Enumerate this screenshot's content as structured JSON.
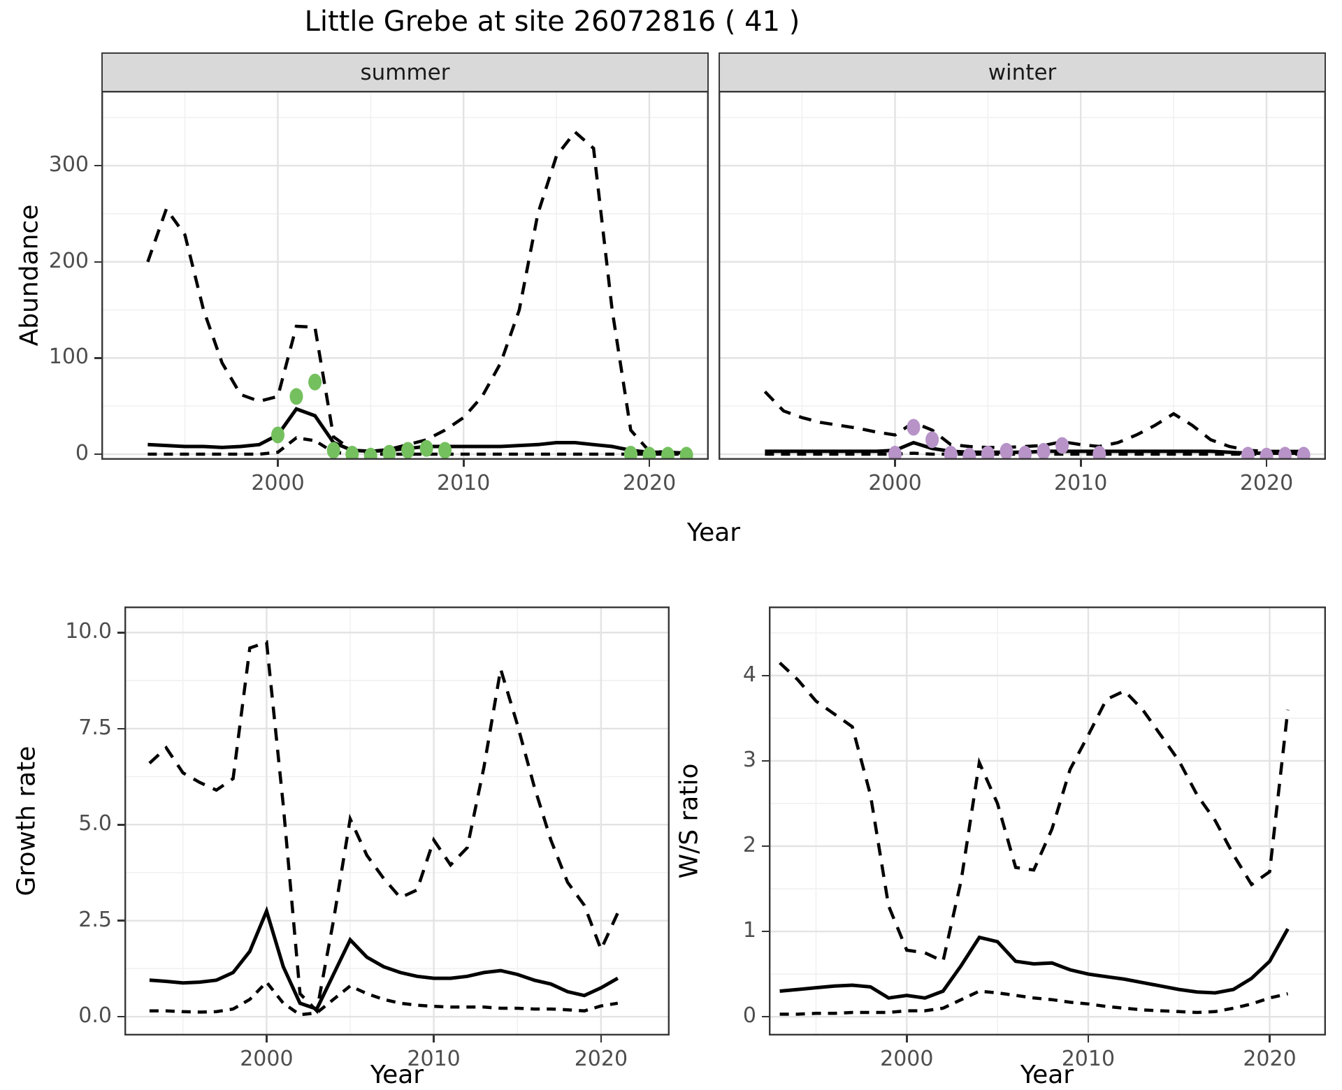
{
  "title": "Little Grebe at site 26072816 ( 41 )",
  "facets": {
    "summer": "summer",
    "winter": "winter"
  },
  "axis_labels": {
    "abundance": "Abundance",
    "year": "Year",
    "growth": "Growth rate",
    "ws": "W/S ratio"
  },
  "colors": {
    "summer_points": "#74C05E",
    "winter_points": "#B793C8",
    "line": "#000000",
    "strip_bg": "#D9D9D9",
    "grid_major": "#E3E3E3",
    "grid_minor": "#F1F1F1",
    "panel_border": "#383838",
    "axis_text": "#4D4D4D"
  },
  "chart_data": [
    {
      "id": "abundance-summer",
      "type": "line",
      "facet": "summer",
      "xlabel": "Year",
      "ylabel": "Abundance",
      "x": [
        1993,
        1994,
        1995,
        1996,
        1997,
        1998,
        1999,
        2000,
        2001,
        2002,
        2003,
        2004,
        2005,
        2006,
        2007,
        2008,
        2009,
        2010,
        2011,
        2012,
        2013,
        2014,
        2015,
        2016,
        2017,
        2018,
        2019,
        2020,
        2021,
        2022
      ],
      "series": [
        {
          "name": "upper_ci",
          "style": "dashed",
          "values": [
            200,
            255,
            228,
            150,
            95,
            62,
            55,
            60,
            133,
            132,
            18,
            4,
            3,
            5,
            10,
            15,
            25,
            38,
            60,
            95,
            150,
            250,
            310,
            335,
            318,
            150,
            25,
            3,
            2,
            2
          ]
        },
        {
          "name": "mean",
          "style": "solid",
          "values": [
            10,
            9,
            8,
            8,
            7,
            8,
            10,
            20,
            47,
            40,
            12,
            4,
            3,
            4,
            6,
            8,
            8,
            8,
            8,
            8,
            9,
            10,
            12,
            12,
            10,
            8,
            4,
            2,
            2,
            1
          ]
        },
        {
          "name": "lower_ci",
          "style": "dashed2",
          "values": [
            0,
            0,
            0,
            0,
            0,
            0,
            0,
            2,
            17,
            14,
            2,
            0,
            0,
            0,
            0,
            0,
            0,
            0,
            0,
            0,
            0,
            0,
            0,
            0,
            0,
            0,
            0,
            0,
            0,
            0
          ]
        }
      ],
      "points": {
        "name": "observed-counts",
        "color": "#74C05E",
        "x": [
          2000,
          2001,
          2002,
          2003,
          2004,
          2005,
          2006,
          2007,
          2008,
          2009,
          2019,
          2020,
          2021,
          2022
        ],
        "y": [
          20,
          60,
          75,
          4,
          0,
          -2,
          1,
          4,
          6,
          4,
          0,
          -1,
          -1,
          -1
        ]
      },
      "xlim": [
        1990.5,
        2023.2
      ],
      "ylim": [
        -5.8,
        377.8
      ],
      "xticks": [
        2000,
        2010,
        2020
      ],
      "xtick_labels": [
        "2000",
        "2010",
        "2020"
      ],
      "yticks": [
        0,
        100,
        200,
        300
      ],
      "ytick_labels": [
        "0",
        "100",
        "200",
        "300"
      ],
      "xticks_minor": [
        1995,
        2005,
        2015
      ],
      "yticks_minor": [
        50,
        150,
        250,
        350
      ],
      "grid": true,
      "legend": "none"
    },
    {
      "id": "abundance-winter",
      "type": "line",
      "facet": "winter",
      "xlabel": "Year",
      "ylabel": "Abundance",
      "x": [
        1993,
        1994,
        1995,
        1996,
        1997,
        1998,
        1999,
        2000,
        2001,
        2002,
        2003,
        2004,
        2005,
        2006,
        2007,
        2008,
        2009,
        2010,
        2011,
        2012,
        2013,
        2014,
        2015,
        2016,
        2017,
        2018,
        2019,
        2020,
        2021,
        2022
      ],
      "series": [
        {
          "name": "upper_ci",
          "style": "dashed",
          "values": [
            65,
            45,
            38,
            33,
            30,
            27,
            23,
            20,
            33,
            25,
            10,
            8,
            7,
            7,
            8,
            9,
            13,
            10,
            8,
            12,
            20,
            30,
            42,
            30,
            15,
            8,
            4,
            3,
            3,
            3
          ]
        },
        {
          "name": "mean",
          "style": "solid",
          "values": [
            3,
            3,
            3,
            3,
            3,
            3,
            3,
            4,
            12,
            6,
            3,
            2,
            2,
            2,
            2,
            3,
            3,
            3,
            3,
            3,
            3,
            3,
            3,
            3,
            3,
            2,
            1,
            1,
            1,
            1
          ]
        },
        {
          "name": "lower_ci",
          "style": "dashed2",
          "values": [
            0,
            0,
            0,
            0,
            0,
            0,
            0,
            0,
            1,
            0,
            0,
            0,
            0,
            0,
            0,
            0,
            0,
            0,
            0,
            0,
            0,
            0,
            0,
            0,
            0,
            0,
            0,
            0,
            0,
            0
          ]
        }
      ],
      "points": {
        "name": "observed-counts",
        "color": "#B793C8",
        "x": [
          2000,
          2001,
          2002,
          2003,
          2004,
          2005,
          2006,
          2007,
          2008,
          2009,
          2011,
          2019,
          2020,
          2021,
          2022
        ],
        "y": [
          0,
          28,
          15,
          0,
          -2,
          0,
          3,
          0,
          3,
          9,
          0,
          -1,
          -2,
          -1,
          -1
        ]
      },
      "xlim": [
        1990.5,
        2023.2
      ],
      "ylim": [
        -5.8,
        377.8
      ],
      "xticks": [
        2000,
        2010,
        2020
      ],
      "xtick_labels": [
        "2000",
        "2010",
        "2020"
      ],
      "yticks": [
        0,
        100,
        200,
        300
      ],
      "ytick_labels": [
        "0",
        "100",
        "200",
        "300"
      ],
      "xticks_minor": [
        1995,
        2005,
        2015
      ],
      "yticks_minor": [
        50,
        150,
        250,
        350
      ],
      "grid": true,
      "legend": "none"
    },
    {
      "id": "growth-rate",
      "type": "line",
      "facet": null,
      "xlabel": "Year",
      "ylabel": "Growth rate",
      "x": [
        1993,
        1994,
        1995,
        1996,
        1997,
        1998,
        1999,
        2000,
        2001,
        2002,
        2003,
        2004,
        2005,
        2006,
        2007,
        2008,
        2009,
        2010,
        2011,
        2012,
        2013,
        2014,
        2015,
        2016,
        2017,
        2018,
        2019,
        2020,
        2021
      ],
      "series": [
        {
          "name": "upper_ci",
          "style": "dashed",
          "values": [
            6.6,
            7.0,
            6.35,
            6.1,
            5.9,
            6.2,
            9.6,
            9.75,
            5.5,
            0.6,
            0.15,
            2.5,
            5.15,
            4.2,
            3.6,
            3.1,
            3.3,
            4.6,
            3.95,
            4.4,
            6.5,
            9.05,
            7.6,
            6.0,
            4.6,
            3.5,
            2.9,
            1.75,
            2.7
          ]
        },
        {
          "name": "mean",
          "style": "solid",
          "values": [
            0.95,
            0.92,
            0.88,
            0.9,
            0.95,
            1.15,
            1.7,
            2.75,
            1.3,
            0.35,
            0.2,
            1.1,
            2.0,
            1.55,
            1.3,
            1.15,
            1.05,
            1.0,
            1.0,
            1.05,
            1.15,
            1.2,
            1.1,
            0.95,
            0.85,
            0.65,
            0.55,
            0.75,
            1.0
          ]
        },
        {
          "name": "lower_ci",
          "style": "dashed2",
          "values": [
            0.15,
            0.15,
            0.13,
            0.12,
            0.13,
            0.2,
            0.45,
            0.9,
            0.35,
            0.05,
            0.1,
            0.45,
            0.8,
            0.6,
            0.45,
            0.35,
            0.3,
            0.27,
            0.25,
            0.25,
            0.25,
            0.22,
            0.22,
            0.2,
            0.2,
            0.18,
            0.15,
            0.28,
            0.35
          ]
        }
      ],
      "points": null,
      "xlim": [
        1991.5,
        2024.1
      ],
      "ylim": [
        -0.49,
        10.68
      ],
      "xticks": [
        2000,
        2010,
        2020
      ],
      "xtick_labels": [
        "2000",
        "2010",
        "2020"
      ],
      "yticks": [
        0,
        2.5,
        5,
        7.5,
        10
      ],
      "ytick_labels": [
        "0.0",
        "2.5",
        "5.0",
        "7.5",
        "10.0"
      ],
      "xticks_minor": [
        1995,
        2005,
        2015
      ],
      "yticks_minor": [
        1.25,
        3.75,
        6.25,
        8.75
      ],
      "grid": true,
      "legend": "none"
    },
    {
      "id": "ws-ratio",
      "type": "line",
      "facet": null,
      "xlabel": "Year",
      "ylabel": "W/S ratio",
      "x": [
        1993,
        1994,
        1995,
        1996,
        1997,
        1998,
        1999,
        2000,
        2001,
        2002,
        2003,
        2004,
        2005,
        2006,
        2007,
        2008,
        2009,
        2010,
        2011,
        2012,
        2013,
        2014,
        2015,
        2016,
        2017,
        2018,
        2019,
        2020,
        2021
      ],
      "series": [
        {
          "name": "upper_ci",
          "style": "dashed",
          "values": [
            4.15,
            3.95,
            3.7,
            3.55,
            3.4,
            2.6,
            1.3,
            0.78,
            0.75,
            0.65,
            1.6,
            2.98,
            2.5,
            1.75,
            1.72,
            2.2,
            2.9,
            3.3,
            3.72,
            3.82,
            3.6,
            3.3,
            3.0,
            2.6,
            2.3,
            1.9,
            1.55,
            1.7,
            3.6
          ]
        },
        {
          "name": "mean",
          "style": "solid",
          "values": [
            0.3,
            0.32,
            0.34,
            0.36,
            0.37,
            0.35,
            0.22,
            0.25,
            0.22,
            0.3,
            0.6,
            0.93,
            0.88,
            0.65,
            0.62,
            0.63,
            0.55,
            0.5,
            0.47,
            0.44,
            0.4,
            0.36,
            0.32,
            0.29,
            0.28,
            0.32,
            0.45,
            0.65,
            1.03
          ]
        },
        {
          "name": "lower_ci",
          "style": "dashed2",
          "values": [
            0.03,
            0.03,
            0.04,
            0.04,
            0.05,
            0.05,
            0.05,
            0.07,
            0.07,
            0.1,
            0.2,
            0.3,
            0.28,
            0.25,
            0.22,
            0.2,
            0.17,
            0.15,
            0.12,
            0.1,
            0.08,
            0.07,
            0.06,
            0.05,
            0.06,
            0.1,
            0.15,
            0.22,
            0.27
          ]
        }
      ],
      "points": null,
      "xlim": [
        1992.4,
        2023.1
      ],
      "ylim": [
        -0.22,
        4.81
      ],
      "xticks": [
        2000,
        2010,
        2020
      ],
      "xtick_labels": [
        "2000",
        "2010",
        "2020"
      ],
      "yticks": [
        0,
        1,
        2,
        3,
        4
      ],
      "ytick_labels": [
        "0",
        "1",
        "2",
        "3",
        "4"
      ],
      "xticks_minor": [
        1995,
        2005,
        2015
      ],
      "yticks_minor": [
        0.5,
        1.5,
        2.5,
        3.5,
        4.5
      ],
      "grid": true,
      "legend": "none"
    }
  ]
}
